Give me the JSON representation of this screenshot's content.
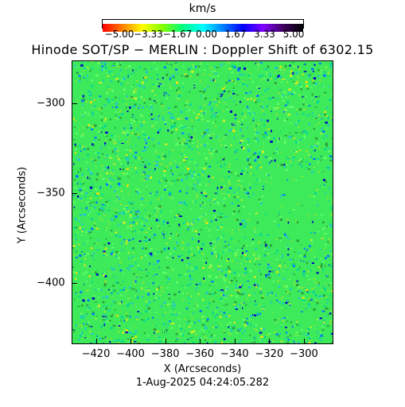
{
  "colorbar": {
    "unit_label": "km/s",
    "tick_labels": [
      "−5.00",
      "−3.33",
      "−1.67",
      "0.00",
      "1.67",
      "3.33",
      "5.00"
    ],
    "range": [
      -5.0,
      5.0
    ],
    "colormap": [
      "#ff0000",
      "#ff8000",
      "#ffff00",
      "#80ff00",
      "#00ff80",
      "#00ffff",
      "#0080ff",
      "#0000ff",
      "#8000ff",
      "#400060",
      "#000000"
    ]
  },
  "title": "Hinode SOT/SP − MERLIN : Doppler Shift of 6302.15",
  "axes": {
    "xlabel": "X (Arcseconds)",
    "ylabel": "Y (Arcseconds)",
    "xticks": [
      "−420",
      "−400",
      "−380",
      "−360",
      "−340",
      "−320",
      "−300"
    ],
    "yticks": [
      "−300",
      "−350",
      "−400"
    ],
    "xlim": [
      -434,
      -283
    ],
    "ylim": [
      -434,
      -276
    ]
  },
  "timestamp": "1-Aug-2025 04:24:05.282",
  "image": {
    "description": "Doppler velocity map",
    "background_color": "#3dea5a"
  }
}
